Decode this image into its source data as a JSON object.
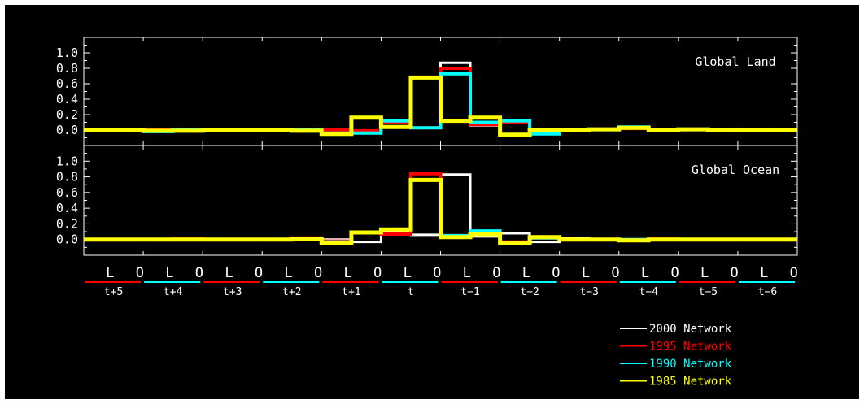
{
  "colors": {
    "background": "#000000",
    "axes": "#ffffff",
    "white": "#ffffff",
    "red": "#ff0000",
    "cyan": "#00ffff",
    "yellow": "#ffff00"
  },
  "chart_data": {
    "type": "line",
    "step": true,
    "categories": [
      "L",
      "O",
      "L",
      "O",
      "L",
      "O",
      "L",
      "O",
      "L",
      "O",
      "L",
      "O",
      "L",
      "O",
      "L",
      "O",
      "L",
      "O",
      "L",
      "O",
      "L",
      "O",
      "L",
      "O"
    ],
    "groups": [
      "t+5",
      "t+4",
      "t+3",
      "t+2",
      "t+1",
      "t",
      "t−1",
      "t−2",
      "t−3",
      "t−4",
      "t−5",
      "t−6"
    ],
    "group_underline_colors": [
      "#ff0000",
      "#00ffff",
      "#ff0000",
      "#00ffff",
      "#ff0000",
      "#00ffff",
      "#ff0000",
      "#00ffff",
      "#ff0000",
      "#00ffff",
      "#ff0000",
      "#00ffff"
    ],
    "ylim": [
      -0.2,
      1.2
    ],
    "yticks": [
      "1.0",
      "0.8",
      "0.6",
      "0.4",
      "0.2",
      "0.0"
    ],
    "legend": [
      {
        "name": "2000 Network",
        "color": "#ffffff"
      },
      {
        "name": "1995 Network",
        "color": "#ff0000"
      },
      {
        "name": "1990 Network",
        "color": "#00ffff"
      },
      {
        "name": "1985 Network",
        "color": "#ffff00"
      }
    ],
    "panels": [
      {
        "title": "Global Land",
        "series": [
          {
            "color": "#ffffff",
            "values": [
              0,
              0,
              0,
              0,
              0,
              0,
              0,
              0,
              0,
              -0.01,
              0.09,
              0.03,
              0.87,
              0.06,
              0.1,
              -0.03,
              0,
              0.01,
              0.02,
              0.01,
              0.01,
              0.01,
              0.01,
              0
            ]
          },
          {
            "color": "#ff0000",
            "values": [
              0,
              0,
              0,
              0,
              0,
              0,
              0,
              0,
              0,
              -0.01,
              0.1,
              0.03,
              0.8,
              0.07,
              0.1,
              -0.03,
              0,
              0.01,
              0.02,
              0.01,
              0.01,
              0.01,
              0.01,
              0
            ]
          },
          {
            "color": "#00ffff",
            "values": [
              0,
              0,
              -0.02,
              0,
              0,
              0,
              0,
              0,
              -0.04,
              -0.04,
              0.12,
              0.03,
              0.73,
              0.1,
              0.12,
              -0.05,
              0,
              0.01,
              0.04,
              0.01,
              0.01,
              -0.01,
              0.01,
              0
            ]
          },
          {
            "color": "#ffff00",
            "values": [
              0,
              0,
              -0.01,
              -0.01,
              0,
              0,
              0,
              -0.01,
              -0.05,
              0.16,
              0.04,
              0.68,
              0.12,
              0.16,
              -0.06,
              0,
              0,
              0.01,
              0.03,
              0,
              0.01,
              0,
              0,
              0
            ]
          }
        ]
      },
      {
        "title": "Global Ocean",
        "series": [
          {
            "color": "#ffffff",
            "values": [
              0,
              0,
              0,
              0,
              0,
              0,
              0,
              0,
              0,
              -0.03,
              0.1,
              0.06,
              0.83,
              0.04,
              0.08,
              -0.03,
              0.02,
              0,
              0,
              0,
              0,
              0,
              0,
              0
            ]
          },
          {
            "color": "#ff0000",
            "values": [
              0,
              0,
              0,
              0.01,
              0,
              0,
              0,
              0.02,
              -0.02,
              0.09,
              0.07,
              0.84,
              0.05,
              0.09,
              -0.03,
              0.02,
              0,
              0,
              0,
              0.01,
              0,
              0,
              0,
              0
            ]
          },
          {
            "color": "#00ffff",
            "values": [
              0,
              0,
              0,
              0,
              0,
              0,
              0,
              0,
              -0.03,
              0.09,
              0.13,
              0.76,
              0.05,
              0.11,
              -0.05,
              0.02,
              0,
              0,
              0,
              0,
              0,
              0,
              0,
              0
            ]
          },
          {
            "color": "#ffff00",
            "values": [
              0,
              0,
              0,
              0,
              0,
              0,
              0,
              0.01,
              -0.05,
              0.09,
              0.13,
              0.76,
              0.03,
              0.07,
              -0.04,
              0.03,
              0,
              0,
              -0.01,
              0,
              0,
              0,
              0,
              0
            ]
          }
        ]
      }
    ]
  }
}
